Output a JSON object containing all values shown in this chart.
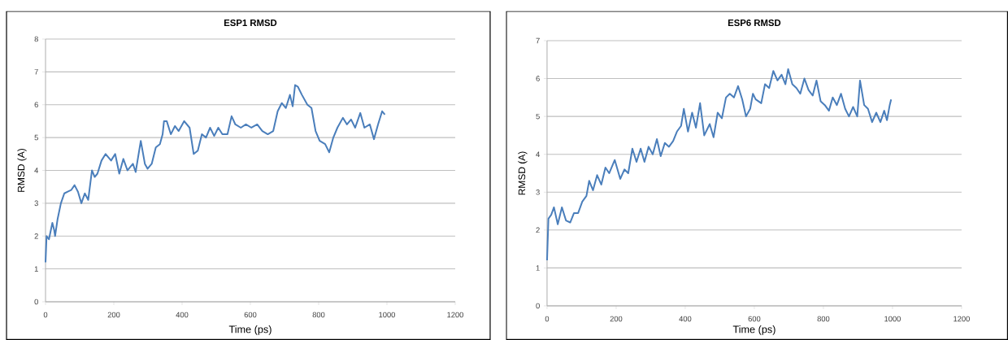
{
  "chart_data": [
    {
      "type": "line",
      "title": "ESP1 RMSD",
      "xlabel": "Time (ps)",
      "ylabel": "RMSD (A)",
      "color": "#4a7ebb",
      "grid": "y",
      "xlim": [
        0,
        1200
      ],
      "ylim": [
        0,
        8
      ],
      "xticks": [
        0,
        200,
        400,
        600,
        800,
        1000,
        1200
      ],
      "yticks": [
        0,
        1,
        2,
        3,
        4,
        5,
        6,
        7,
        8
      ],
      "x": [
        0,
        3,
        10,
        20,
        25,
        28,
        35,
        45,
        55,
        65,
        75,
        85,
        95,
        105,
        115,
        125,
        136,
        144,
        152,
        164,
        176,
        192,
        204,
        216,
        228,
        240,
        256,
        264,
        279,
        291,
        299,
        311,
        323,
        335,
        343,
        347,
        355,
        367,
        379,
        390,
        406,
        422,
        434,
        446,
        458,
        470,
        482,
        494,
        506,
        518,
        533,
        545,
        556,
        572,
        587,
        603,
        620,
        635,
        651,
        667,
        680,
        692,
        704,
        716,
        724,
        731,
        739,
        751,
        767,
        779,
        791,
        803,
        819,
        831,
        843,
        855,
        871,
        883,
        895,
        907,
        922,
        934,
        950,
        962,
        974,
        986,
        994
      ],
      "values": [
        1.2,
        2.0,
        1.9,
        2.4,
        2.2,
        2.0,
        2.5,
        3.0,
        3.3,
        3.35,
        3.4,
        3.55,
        3.35,
        3.0,
        3.3,
        3.1,
        4.0,
        3.8,
        3.9,
        4.3,
        4.5,
        4.3,
        4.5,
        3.9,
        4.35,
        4.0,
        4.2,
        3.95,
        4.9,
        4.2,
        4.05,
        4.2,
        4.7,
        4.8,
        5.1,
        5.5,
        5.5,
        5.1,
        5.35,
        5.2,
        5.5,
        5.3,
        4.5,
        4.6,
        5.1,
        5.0,
        5.3,
        5.05,
        5.3,
        5.1,
        5.1,
        5.65,
        5.4,
        5.3,
        5.4,
        5.3,
        5.4,
        5.2,
        5.1,
        5.2,
        5.8,
        6.05,
        5.9,
        6.3,
        5.95,
        6.6,
        6.55,
        6.3,
        6.0,
        5.9,
        5.2,
        4.9,
        4.8,
        4.55,
        5.0,
        5.3,
        5.6,
        5.4,
        5.55,
        5.3,
        5.75,
        5.3,
        5.4,
        4.95,
        5.4,
        5.8,
        5.7
      ]
    },
    {
      "type": "line",
      "title": "ESP6 RMSD",
      "xlabel": "Time (ps)",
      "ylabel": "RMSD (A)",
      "color": "#4a7ebb",
      "grid": "y",
      "xlim": [
        0,
        1200
      ],
      "ylim": [
        0,
        7
      ],
      "xticks": [
        0,
        200,
        400,
        600,
        800,
        1000,
        1200
      ],
      "yticks": [
        0,
        1,
        2,
        3,
        4,
        5,
        6,
        7
      ],
      "x": [
        0,
        4,
        12,
        20,
        31,
        43,
        55,
        67,
        78,
        90,
        102,
        114,
        122,
        133,
        145,
        157,
        169,
        180,
        196,
        212,
        224,
        235,
        247,
        259,
        271,
        282,
        294,
        306,
        318,
        329,
        341,
        353,
        365,
        376,
        388,
        396,
        408,
        420,
        431,
        443,
        455,
        471,
        482,
        494,
        506,
        518,
        529,
        541,
        553,
        565,
        576,
        588,
        596,
        604,
        620,
        631,
        643,
        655,
        667,
        679,
        690,
        698,
        710,
        722,
        733,
        745,
        757,
        769,
        780,
        792,
        804,
        816,
        827,
        839,
        851,
        863,
        874,
        886,
        898,
        906,
        918,
        929,
        941,
        953,
        965,
        976,
        984,
        992,
        996
      ],
      "values": [
        1.2,
        2.3,
        2.4,
        2.6,
        2.15,
        2.6,
        2.25,
        2.2,
        2.45,
        2.45,
        2.75,
        2.9,
        3.3,
        3.05,
        3.45,
        3.2,
        3.65,
        3.5,
        3.85,
        3.35,
        3.6,
        3.5,
        4.15,
        3.8,
        4.15,
        3.8,
        4.2,
        4.0,
        4.4,
        3.95,
        4.3,
        4.2,
        4.35,
        4.6,
        4.75,
        5.2,
        4.6,
        5.1,
        4.7,
        5.35,
        4.5,
        4.8,
        4.45,
        5.1,
        4.95,
        5.5,
        5.6,
        5.5,
        5.8,
        5.45,
        5.0,
        5.2,
        5.6,
        5.45,
        5.35,
        5.85,
        5.75,
        6.2,
        5.95,
        6.1,
        5.85,
        6.25,
        5.85,
        5.75,
        5.6,
        6.0,
        5.7,
        5.55,
        5.95,
        5.4,
        5.3,
        5.15,
        5.5,
        5.3,
        5.6,
        5.2,
        5.0,
        5.25,
        5.0,
        5.95,
        5.3,
        5.2,
        4.85,
        5.1,
        4.85,
        5.15,
        4.9,
        5.3,
        5.45
      ]
    }
  ]
}
